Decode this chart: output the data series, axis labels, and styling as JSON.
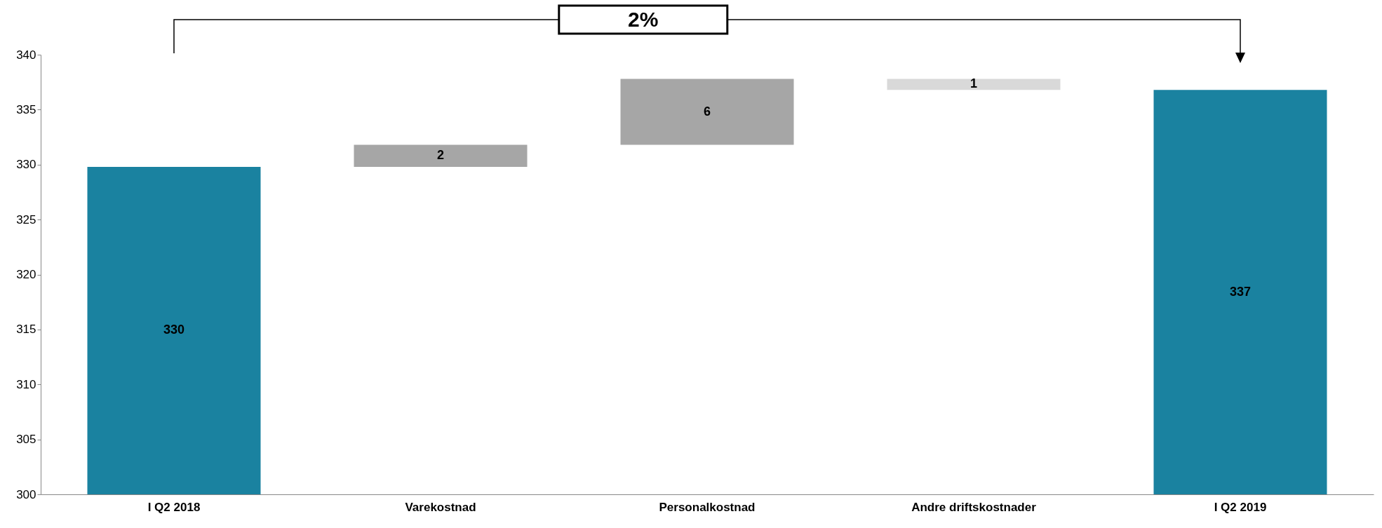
{
  "chart_data": {
    "type": "bar",
    "categories": [
      "I Q2 2018",
      "Varekostnad",
      "Personalkostnad",
      "Andre driftskostnader",
      "I Q2 2019"
    ],
    "values": [
      329.8,
      2,
      6,
      -1,
      336.8
    ],
    "base": [
      null,
      329.8,
      331.8,
      337.8,
      null
    ],
    "value_labels": [
      "330",
      "2",
      "6",
      "1",
      "337"
    ],
    "colors": [
      "#1a82a0",
      "#a6a6a6",
      "#a6a6a6",
      "#d9d9d9",
      "#1a82a0"
    ],
    "ylim": [
      300,
      340
    ],
    "yticks": [
      300,
      305,
      310,
      315,
      320,
      325,
      330,
      335,
      340
    ],
    "grid": false,
    "annotations": [
      "2%"
    ]
  }
}
